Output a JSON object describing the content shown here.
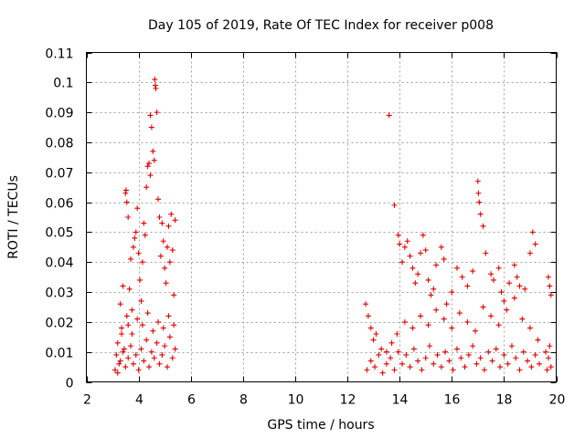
{
  "chart_data": {
    "type": "scatter",
    "title": "Day 105 of 2019, Rate Of TEC Index for receiver p008",
    "xlabel": "GPS time / hours",
    "ylabel": "ROTI / TECUs",
    "xlim": [
      2,
      20
    ],
    "ylim": [
      0,
      0.11
    ],
    "xticks": [
      2,
      4,
      6,
      8,
      10,
      12,
      14,
      16,
      18,
      20
    ],
    "xtick_labels": [
      "2",
      "4",
      "6",
      "8",
      "10",
      "12",
      "14",
      "16",
      "18",
      "20"
    ],
    "yticks": [
      0,
      0.01,
      0.02,
      0.03,
      0.04,
      0.05,
      0.06,
      0.07,
      0.08,
      0.09,
      0.1,
      0.11
    ],
    "ytick_labels": [
      "0",
      "0.01",
      "0.02",
      "0.03",
      "0.04",
      "0.05",
      "0.06",
      "0.07",
      "0.08",
      "0.09",
      "0.1",
      "0.11"
    ],
    "grid": true,
    "marker": "+",
    "color": "#e00000",
    "series": [
      {
        "name": "p008",
        "points": [
          [
            3.1,
            0.004
          ],
          [
            3.15,
            0.009
          ],
          [
            3.2,
            0.013
          ],
          [
            3.25,
            0.006
          ],
          [
            3.3,
            0.026
          ],
          [
            3.35,
            0.016
          ],
          [
            3.4,
            0.032
          ],
          [
            3.45,
            0.011
          ],
          [
            3.5,
            0.063
          ],
          [
            3.52,
            0.064
          ],
          [
            3.55,
            0.06
          ],
          [
            3.6,
            0.055
          ],
          [
            3.6,
            0.019
          ],
          [
            3.65,
            0.031
          ],
          [
            3.7,
            0.041
          ],
          [
            3.75,
            0.024
          ],
          [
            3.8,
            0.045
          ],
          [
            3.85,
            0.048
          ],
          [
            3.9,
            0.05
          ],
          [
            3.95,
            0.058
          ],
          [
            4.0,
            0.043
          ],
          [
            4.05,
            0.034
          ],
          [
            4.1,
            0.027
          ],
          [
            4.15,
            0.04
          ],
          [
            4.2,
            0.053
          ],
          [
            4.25,
            0.049
          ],
          [
            4.3,
            0.065
          ],
          [
            4.35,
            0.072
          ],
          [
            4.4,
            0.073
          ],
          [
            4.45,
            0.069
          ],
          [
            4.45,
            0.089
          ],
          [
            4.5,
            0.085
          ],
          [
            4.55,
            0.077
          ],
          [
            4.6,
            0.074
          ],
          [
            4.62,
            0.101
          ],
          [
            4.64,
            0.099
          ],
          [
            4.66,
            0.098
          ],
          [
            4.7,
            0.09
          ],
          [
            4.75,
            0.061
          ],
          [
            4.8,
            0.055
          ],
          [
            4.85,
            0.042
          ],
          [
            4.9,
            0.053
          ],
          [
            4.95,
            0.047
          ],
          [
            5.0,
            0.038
          ],
          [
            5.05,
            0.033
          ],
          [
            5.1,
            0.045
          ],
          [
            5.15,
            0.052
          ],
          [
            5.2,
            0.04
          ],
          [
            5.25,
            0.056
          ],
          [
            5.3,
            0.044
          ],
          [
            5.35,
            0.029
          ],
          [
            5.4,
            0.054
          ],
          [
            3.2,
            0.003
          ],
          [
            3.3,
            0.007
          ],
          [
            3.4,
            0.01
          ],
          [
            3.5,
            0.005
          ],
          [
            3.6,
            0.008
          ],
          [
            3.7,
            0.012
          ],
          [
            3.8,
            0.006
          ],
          [
            3.9,
            0.009
          ],
          [
            4.0,
            0.004
          ],
          [
            4.1,
            0.011
          ],
          [
            4.2,
            0.007
          ],
          [
            4.3,
            0.014
          ],
          [
            4.4,
            0.005
          ],
          [
            4.5,
            0.01
          ],
          [
            4.6,
            0.008
          ],
          [
            4.7,
            0.013
          ],
          [
            4.8,
            0.006
          ],
          [
            4.9,
            0.009
          ],
          [
            5.0,
            0.012
          ],
          [
            5.1,
            0.005
          ],
          [
            5.2,
            0.015
          ],
          [
            5.3,
            0.008
          ],
          [
            5.4,
            0.011
          ],
          [
            3.35,
            0.018
          ],
          [
            3.55,
            0.022
          ],
          [
            3.75,
            0.016
          ],
          [
            3.95,
            0.021
          ],
          [
            4.15,
            0.019
          ],
          [
            4.35,
            0.023
          ],
          [
            4.55,
            0.017
          ],
          [
            4.75,
            0.02
          ],
          [
            4.95,
            0.018
          ],
          [
            5.15,
            0.022
          ],
          [
            5.35,
            0.019
          ],
          [
            13.6,
            0.089
          ],
          [
            13.8,
            0.059
          ],
          [
            13.95,
            0.049
          ],
          [
            14.0,
            0.046
          ],
          [
            14.1,
            0.04
          ],
          [
            14.2,
            0.045
          ],
          [
            14.3,
            0.047
          ],
          [
            14.4,
            0.042
          ],
          [
            14.5,
            0.038
          ],
          [
            14.6,
            0.033
          ],
          [
            14.7,
            0.036
          ],
          [
            14.8,
            0.043
          ],
          [
            14.9,
            0.049
          ],
          [
            15.0,
            0.044
          ],
          [
            15.1,
            0.034
          ],
          [
            15.2,
            0.029
          ],
          [
            15.3,
            0.031
          ],
          [
            15.4,
            0.039
          ],
          [
            15.6,
            0.045
          ],
          [
            15.7,
            0.041
          ],
          [
            15.8,
            0.026
          ],
          [
            16.0,
            0.03
          ],
          [
            16.2,
            0.038
          ],
          [
            16.4,
            0.035
          ],
          [
            16.6,
            0.032
          ],
          [
            16.8,
            0.037
          ],
          [
            17.0,
            0.067
          ],
          [
            17.02,
            0.063
          ],
          [
            17.05,
            0.06
          ],
          [
            17.1,
            0.056
          ],
          [
            17.2,
            0.052
          ],
          [
            17.3,
            0.043
          ],
          [
            17.5,
            0.036
          ],
          [
            17.6,
            0.034
          ],
          [
            17.8,
            0.038
          ],
          [
            17.9,
            0.03
          ],
          [
            18.0,
            0.027
          ],
          [
            18.2,
            0.033
          ],
          [
            18.4,
            0.039
          ],
          [
            18.5,
            0.035
          ],
          [
            18.6,
            0.032
          ],
          [
            18.8,
            0.031
          ],
          [
            19.0,
            0.043
          ],
          [
            19.1,
            0.05
          ],
          [
            19.2,
            0.046
          ],
          [
            19.7,
            0.035
          ],
          [
            19.75,
            0.032
          ],
          [
            19.8,
            0.029
          ],
          [
            12.7,
            0.026
          ],
          [
            12.8,
            0.022
          ],
          [
            12.9,
            0.018
          ],
          [
            13.0,
            0.014
          ],
          [
            13.1,
            0.016
          ],
          [
            13.3,
            0.011
          ],
          [
            13.5,
            0.01
          ],
          [
            13.7,
            0.013
          ],
          [
            13.9,
            0.016
          ],
          [
            14.2,
            0.02
          ],
          [
            14.5,
            0.018
          ],
          [
            14.8,
            0.022
          ],
          [
            15.1,
            0.019
          ],
          [
            15.4,
            0.024
          ],
          [
            15.7,
            0.021
          ],
          [
            16.0,
            0.018
          ],
          [
            16.3,
            0.023
          ],
          [
            16.6,
            0.02
          ],
          [
            16.9,
            0.017
          ],
          [
            17.2,
            0.025
          ],
          [
            17.5,
            0.022
          ],
          [
            17.8,
            0.019
          ],
          [
            18.1,
            0.024
          ],
          [
            18.4,
            0.028
          ],
          [
            18.7,
            0.021
          ],
          [
            19.0,
            0.018
          ],
          [
            19.3,
            0.014
          ],
          [
            19.6,
            0.01
          ],
          [
            19.75,
            0.012
          ],
          [
            12.75,
            0.004
          ],
          [
            12.9,
            0.007
          ],
          [
            13.05,
            0.005
          ],
          [
            13.2,
            0.009
          ],
          [
            13.35,
            0.003
          ],
          [
            13.5,
            0.006
          ],
          [
            13.65,
            0.008
          ],
          [
            13.8,
            0.004
          ],
          [
            13.95,
            0.01
          ],
          [
            14.1,
            0.006
          ],
          [
            14.25,
            0.009
          ],
          [
            14.4,
            0.005
          ],
          [
            14.55,
            0.011
          ],
          [
            14.7,
            0.007
          ],
          [
            14.85,
            0.004
          ],
          [
            15.0,
            0.008
          ],
          [
            15.15,
            0.012
          ],
          [
            15.3,
            0.006
          ],
          [
            15.45,
            0.009
          ],
          [
            15.6,
            0.005
          ],
          [
            15.75,
            0.01
          ],
          [
            15.9,
            0.007
          ],
          [
            16.05,
            0.004
          ],
          [
            16.2,
            0.011
          ],
          [
            16.35,
            0.008
          ],
          [
            16.5,
            0.005
          ],
          [
            16.65,
            0.009
          ],
          [
            16.8,
            0.012
          ],
          [
            16.95,
            0.006
          ],
          [
            17.1,
            0.008
          ],
          [
            17.25,
            0.004
          ],
          [
            17.4,
            0.01
          ],
          [
            17.55,
            0.007
          ],
          [
            17.7,
            0.011
          ],
          [
            17.85,
            0.005
          ],
          [
            18.0,
            0.009
          ],
          [
            18.15,
            0.006
          ],
          [
            18.3,
            0.012
          ],
          [
            18.45,
            0.008
          ],
          [
            18.6,
            0.004
          ],
          [
            18.75,
            0.01
          ],
          [
            18.9,
            0.007
          ],
          [
            19.05,
            0.005
          ],
          [
            19.2,
            0.009
          ],
          [
            19.35,
            0.006
          ],
          [
            19.65,
            0.004
          ],
          [
            19.7,
            0.008
          ],
          [
            19.8,
            0.005
          ]
        ]
      }
    ]
  }
}
